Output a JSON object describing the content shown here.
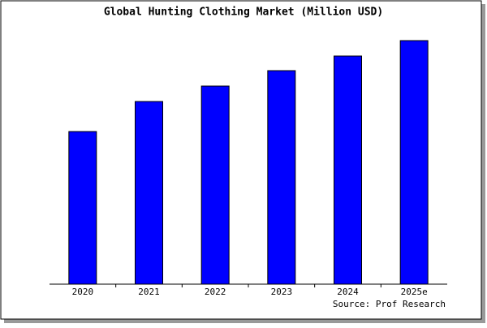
{
  "chart_data": {
    "type": "bar",
    "title": "Global Hunting Clothing Market (Million USD)",
    "categories": [
      "2020",
      "2021",
      "2022",
      "2023",
      "2024",
      "2025e"
    ],
    "values": [
      188,
      225,
      244,
      263,
      281,
      300
    ],
    "color": "#0000ff",
    "ylim": [
      0,
      300
    ],
    "source": "Source: Prof Research"
  }
}
